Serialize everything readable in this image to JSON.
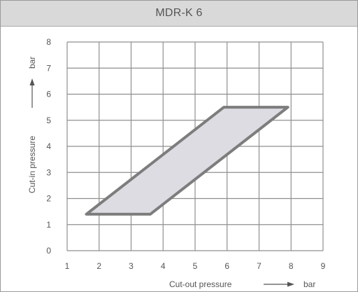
{
  "header": {
    "title": "MDR-K 6"
  },
  "chart_data": {
    "type": "area",
    "title": "MDR-K 6",
    "xlabel": "Cut-out pressure",
    "xunit": "bar",
    "ylabel": "Cut-in pressure",
    "yunit": "bar",
    "xlim": [
      1,
      9
    ],
    "ylim": [
      0,
      8
    ],
    "xticks": [
      "1",
      "2",
      "3",
      "4",
      "5",
      "6",
      "7",
      "8",
      "9"
    ],
    "yticks": [
      "0",
      "1",
      "2",
      "3",
      "4",
      "5",
      "6",
      "7",
      "8"
    ],
    "grid": true,
    "region": [
      {
        "x": 1.6,
        "y": 1.4
      },
      {
        "x": 3.6,
        "y": 1.4
      },
      {
        "x": 7.9,
        "y": 5.5
      },
      {
        "x": 5.9,
        "y": 5.5
      }
    ],
    "colors": {
      "fill": "#dcdce2",
      "outline": "#7d7d7d",
      "grid": "#8f8f8f"
    }
  }
}
